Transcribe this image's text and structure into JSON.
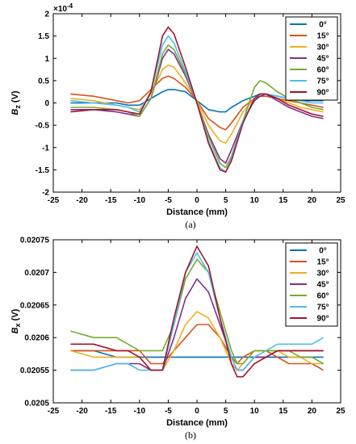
{
  "chart_data": [
    {
      "type": "line",
      "caption": "(a)",
      "xlabel": "Distance (mm)",
      "ylabel": "B_z (V)",
      "y_multiplier": "×10^-4",
      "xlim": [
        -25,
        25
      ],
      "ylim": [
        -2,
        2
      ],
      "xticks": [
        -25,
        -20,
        -15,
        -10,
        -5,
        0,
        5,
        10,
        15,
        20,
        25
      ],
      "yticks": [
        -2,
        -1.5,
        -1,
        -0.5,
        0,
        0.5,
        1,
        1.5,
        2
      ],
      "legend_position": "top-right",
      "x": [
        -22,
        -18,
        -14,
        -12,
        -10,
        -8,
        -6,
        -5,
        -4,
        -2,
        0,
        2,
        4,
        5,
        6,
        8,
        10,
        11,
        12,
        14,
        16,
        18,
        20,
        22
      ],
      "series": [
        {
          "name": "0°",
          "color": "#0072BD",
          "values": [
            0.0,
            0.0,
            0.0,
            -0.05,
            -0.05,
            0.1,
            0.25,
            0.3,
            0.3,
            0.25,
            0.05,
            -0.15,
            -0.2,
            -0.2,
            -0.1,
            0.05,
            0.15,
            0.2,
            0.2,
            0.15,
            0.1,
            0.05,
            0.05,
            0.05
          ]
        },
        {
          "name": "15°",
          "color": "#D95319",
          "values": [
            0.2,
            0.15,
            0.05,
            0.0,
            0.05,
            0.3,
            0.55,
            0.6,
            0.55,
            0.35,
            0.05,
            -0.35,
            -0.55,
            -0.6,
            -0.45,
            -0.1,
            0.1,
            0.15,
            0.15,
            0.1,
            0.05,
            0.0,
            -0.05,
            -0.1
          ]
        },
        {
          "name": "30°",
          "color": "#EDB120",
          "values": [
            0.1,
            0.05,
            -0.05,
            -0.1,
            -0.15,
            0.2,
            0.75,
            0.85,
            0.8,
            0.45,
            0.05,
            -0.5,
            -0.85,
            -0.9,
            -0.7,
            -0.2,
            0.1,
            0.2,
            0.2,
            0.1,
            0.0,
            -0.1,
            -0.15,
            -0.2
          ]
        },
        {
          "name": "45°",
          "color": "#7E2F8E",
          "values": [
            -0.15,
            -0.15,
            -0.2,
            -0.25,
            -0.3,
            0.1,
            1.0,
            1.2,
            1.1,
            0.6,
            0.0,
            -0.7,
            -1.25,
            -1.35,
            -1.05,
            -0.4,
            0.05,
            0.15,
            0.2,
            0.05,
            -0.1,
            -0.2,
            -0.3,
            -0.35
          ]
        },
        {
          "name": "60°",
          "color": "#77AC30",
          "values": [
            -0.1,
            -0.1,
            -0.15,
            -0.2,
            -0.3,
            0.1,
            1.1,
            1.3,
            1.2,
            0.65,
            0.0,
            -0.75,
            -1.35,
            -1.45,
            -1.2,
            -0.4,
            0.35,
            0.5,
            0.45,
            0.25,
            0.1,
            0.0,
            -0.1,
            -0.15
          ]
        },
        {
          "name": "75°",
          "color": "#4DBEEE",
          "values": [
            0.05,
            0.0,
            -0.05,
            -0.1,
            -0.2,
            0.25,
            1.3,
            1.5,
            1.35,
            0.7,
            0.0,
            -0.85,
            -1.45,
            -1.55,
            -1.25,
            -0.4,
            0.1,
            0.2,
            0.2,
            0.15,
            0.1,
            0.05,
            0.0,
            0.0
          ]
        },
        {
          "name": "90°",
          "color": "#A2142F",
          "values": [
            -0.2,
            -0.15,
            -0.15,
            -0.2,
            -0.25,
            0.25,
            1.5,
            1.7,
            1.55,
            0.8,
            0.0,
            -0.9,
            -1.5,
            -1.55,
            -1.3,
            -0.45,
            0.1,
            0.2,
            0.2,
            0.1,
            -0.05,
            -0.15,
            -0.25,
            -0.3
          ]
        }
      ]
    },
    {
      "type": "line",
      "caption": "(b)",
      "xlabel": "Distance (mm)",
      "ylabel": "B_x (V)",
      "xlim": [
        -25,
        25
      ],
      "ylim": [
        0.0205,
        0.02075
      ],
      "xticks": [
        -25,
        -20,
        -15,
        -10,
        -5,
        0,
        5,
        10,
        15,
        20,
        25
      ],
      "yticks": [
        0.0205,
        0.02055,
        0.0206,
        0.02065,
        0.0207,
        0.02075
      ],
      "legend_position": "top-right",
      "x": [
        -22,
        -18,
        -14,
        -12,
        -10,
        -8,
        -6,
        -4,
        -2,
        0,
        2,
        4,
        6,
        7,
        8,
        10,
        12,
        14,
        16,
        18,
        20,
        22
      ],
      "series": [
        {
          "name": "0°",
          "color": "#0072BD",
          "values": [
            0.02058,
            0.02058,
            0.02057,
            0.02057,
            0.02057,
            0.02057,
            0.02057,
            0.02057,
            0.02057,
            0.02057,
            0.02057,
            0.02057,
            0.02057,
            0.02057,
            0.02057,
            0.02057,
            0.02057,
            0.02057,
            0.02057,
            0.02057,
            0.02057,
            0.02057
          ]
        },
        {
          "name": "15°",
          "color": "#D95319",
          "values": [
            0.02058,
            0.02058,
            0.02058,
            0.02058,
            0.02058,
            0.02056,
            0.02056,
            0.02058,
            0.0206,
            0.02062,
            0.02062,
            0.0206,
            0.02057,
            0.02056,
            0.02057,
            0.02058,
            0.02058,
            0.02057,
            0.02056,
            0.02056,
            0.02056,
            0.02055
          ]
        },
        {
          "name": "30°",
          "color": "#EDB120",
          "values": [
            0.02058,
            0.02057,
            0.02057,
            0.02057,
            0.02057,
            0.02055,
            0.02055,
            0.02058,
            0.02062,
            0.02064,
            0.02063,
            0.0206,
            0.02056,
            0.02055,
            0.02056,
            0.02058,
            0.02058,
            0.02058,
            0.02057,
            0.02057,
            0.02056,
            0.02056
          ]
        },
        {
          "name": "45°",
          "color": "#7E2F8E",
          "values": [
            0.02055,
            0.02055,
            0.02056,
            0.02056,
            0.02056,
            0.02055,
            0.02055,
            0.0206,
            0.02066,
            0.02069,
            0.02067,
            0.02062,
            0.02057,
            0.02055,
            0.02055,
            0.02057,
            0.02057,
            0.02058,
            0.02058,
            0.02058,
            0.02058,
            0.02058
          ]
        },
        {
          "name": "60°",
          "color": "#77AC30",
          "values": [
            0.02061,
            0.0206,
            0.0206,
            0.02059,
            0.02058,
            0.02058,
            0.02058,
            0.02062,
            0.02069,
            0.02072,
            0.0207,
            0.02064,
            0.02058,
            0.02056,
            0.02056,
            0.02058,
            0.02058,
            0.02058,
            0.02058,
            0.02057,
            0.02057,
            0.02056
          ]
        },
        {
          "name": "75°",
          "color": "#4DBEEE",
          "values": [
            0.02055,
            0.02055,
            0.02056,
            0.02056,
            0.02055,
            0.02055,
            0.02055,
            0.02062,
            0.0207,
            0.02073,
            0.0207,
            0.02063,
            0.02057,
            0.02055,
            0.02055,
            0.02057,
            0.02058,
            0.02059,
            0.02059,
            0.02059,
            0.02059,
            0.0206
          ]
        },
        {
          "name": "90°",
          "color": "#A2142F",
          "values": [
            0.02059,
            0.02059,
            0.02058,
            0.02058,
            0.02057,
            0.02055,
            0.02055,
            0.02063,
            0.0207,
            0.02074,
            0.02071,
            0.02063,
            0.02056,
            0.02054,
            0.02054,
            0.02056,
            0.02057,
            0.02058,
            0.02058,
            0.02058,
            0.02058,
            0.02058
          ]
        }
      ]
    }
  ]
}
